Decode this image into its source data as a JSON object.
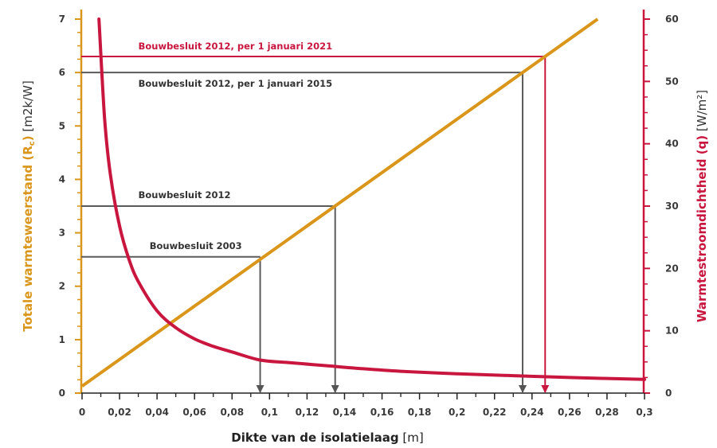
{
  "chart_data": {
    "type": "line",
    "xlabel": {
      "bold": "Dikte van de isolatielaag",
      "unit": " [m]"
    },
    "ylabel_left": {
      "bold": "Totale warmteweerstand (R",
      "sub": "c",
      "close": ")",
      "unit": " [m2k/W]"
    },
    "ylabel_right": {
      "bold": "Warmtestroomdichtheid (q)",
      "unit": " [W/m²]"
    },
    "xlim": [
      0,
      0.3
    ],
    "ylim_left": [
      0,
      7
    ],
    "ylim_right": [
      0,
      60
    ],
    "x_ticks": [
      "0",
      "0,02",
      "0,04",
      "0,06",
      "0,08",
      "0,1",
      "0,12",
      "0,14",
      "0,16",
      "0,18",
      "0,2",
      "0,22",
      "0,24",
      "0,26",
      "0,28",
      "0,3"
    ],
    "y_left_ticks": [
      "0",
      "1",
      "2",
      "3",
      "4",
      "5",
      "6",
      "7"
    ],
    "y_right_ticks": [
      "0",
      "10",
      "20",
      "30",
      "40",
      "50",
      "60"
    ],
    "series": [
      {
        "axis": "left",
        "color": "#d9961b",
        "x": [
          0,
          0.275
        ],
        "y": [
          0.13,
          7.0
        ]
      },
      {
        "axis": "right",
        "color": "#c8163f",
        "x": [
          0.009,
          0.012,
          0.015,
          0.02,
          0.025,
          0.03,
          0.04,
          0.05,
          0.06,
          0.07,
          0.08,
          0.095,
          0.11,
          0.13,
          0.15,
          0.17,
          0.2,
          0.23,
          0.26,
          0.3
        ],
        "y": [
          60.0,
          44.2,
          35.3,
          26.8,
          21.5,
          17.9,
          13.2,
          10.5,
          8.7,
          7.5,
          6.6,
          5.3,
          4.9,
          4.4,
          3.9,
          3.5,
          3.1,
          2.8,
          2.5,
          2.2
        ]
      }
    ],
    "annotations": [
      {
        "label": "Bouwbesluit 2003",
        "x": 0.095,
        "rc": 2.55,
        "color": "#5a5a5a",
        "label_x": 0.036,
        "label_dy": -10
      },
      {
        "label": "Bouwbesluit 2012",
        "x": 0.135,
        "rc": 3.5,
        "color": "#5a5a5a",
        "label_x": 0.03,
        "label_dy": -10
      },
      {
        "label": "Bouwbesluit 2012, per 1 januari 2015",
        "x": 0.235,
        "rc": 6.0,
        "color": "#5a5a5a",
        "label_x": 0.03,
        "label_dy": 18
      },
      {
        "label": "Bouwbesluit 2012, per 1 januari 2021",
        "x": 0.247,
        "rc": 6.3,
        "color": "#c8163f",
        "label_x": 0.03,
        "label_dy": -9
      }
    ],
    "grid": false,
    "colors": {
      "left_axis": "#d9961b",
      "right_axis": "#c8163f",
      "text": "#3a3a3a"
    }
  }
}
